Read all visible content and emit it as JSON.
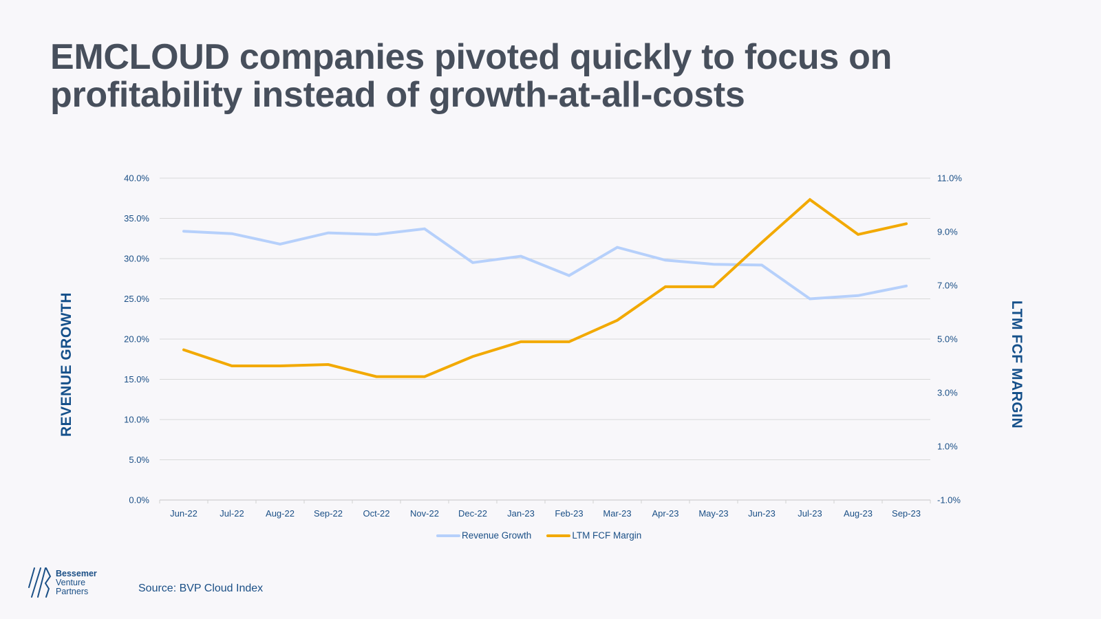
{
  "title": {
    "line1": "EMCLOUD companies pivoted quickly to focus on",
    "line2": "profitability instead of growth-at-all-costs"
  },
  "source": "Source: BVP Cloud Index",
  "logo": {
    "line1": "Bessemer",
    "line2": "Venture",
    "line3": "Partners"
  },
  "colors": {
    "revenue_growth": "#b6d0fb",
    "ltm_fcf_margin": "#f2a900",
    "text": "#1a4f86",
    "title": "#474f5c"
  },
  "chart_data": {
    "type": "line",
    "title": "EMCLOUD companies pivoted quickly to focus on profitability instead of growth-at-all-costs",
    "categories": [
      "Jun-22",
      "Jul-22",
      "Aug-22",
      "Sep-22",
      "Oct-22",
      "Nov-22",
      "Dec-22",
      "Jan-23",
      "Feb-23",
      "Mar-23",
      "Apr-23",
      "May-23",
      "Jun-23",
      "Jul-23",
      "Aug-23",
      "Sep-23"
    ],
    "series": [
      {
        "name": "Revenue Growth",
        "axis": "left",
        "color": "#b6d0fb",
        "values": [
          33.4,
          33.1,
          31.8,
          33.2,
          33.0,
          33.7,
          29.5,
          30.3,
          27.9,
          31.4,
          29.8,
          29.3,
          29.2,
          25.0,
          25.4,
          26.6
        ]
      },
      {
        "name": "LTM FCF Margin",
        "axis": "right",
        "color": "#f2a900",
        "values": [
          4.6,
          4.0,
          4.0,
          4.05,
          3.6,
          3.6,
          4.35,
          4.9,
          4.9,
          5.7,
          6.95,
          6.95,
          8.6,
          10.2,
          8.9,
          9.3
        ]
      }
    ],
    "ylabel": "REVENUE GROWTH",
    "y2label": "LTM FCF MARGIN",
    "xlabel": "",
    "ylim": [
      0,
      40
    ],
    "y2lim": [
      -1,
      11
    ],
    "yticks": [
      "0.0%",
      "5.0%",
      "10.0%",
      "15.0%",
      "20.0%",
      "25.0%",
      "30.0%",
      "35.0%",
      "40.0%"
    ],
    "y2ticks": [
      "-1.0%",
      "1.0%",
      "3.0%",
      "5.0%",
      "7.0%",
      "9.0%",
      "11.0%"
    ],
    "grid": true,
    "legend": "bottom-center"
  }
}
